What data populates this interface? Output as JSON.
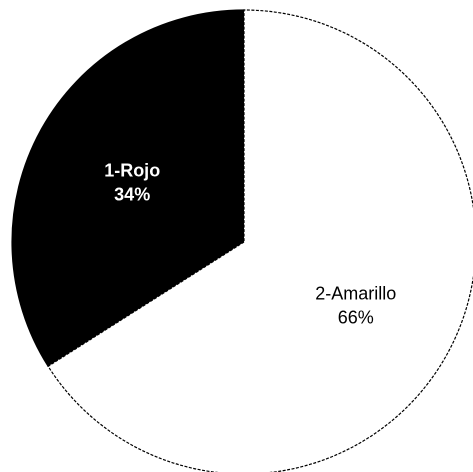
{
  "chart_data": {
    "type": "pie",
    "title": "",
    "slices": [
      {
        "label": "1-Rojo",
        "value": 34,
        "value_label": "34%",
        "color": "#000000",
        "label_color": "#ffffff"
      },
      {
        "label": "2-Amarillo",
        "value": 66,
        "value_label": "66%",
        "color": "#ffffff",
        "label_color": "#000000"
      }
    ],
    "edge_color": "#000000",
    "start_angle_deg": 0,
    "direction": "counterclockwise",
    "legend": "none"
  }
}
